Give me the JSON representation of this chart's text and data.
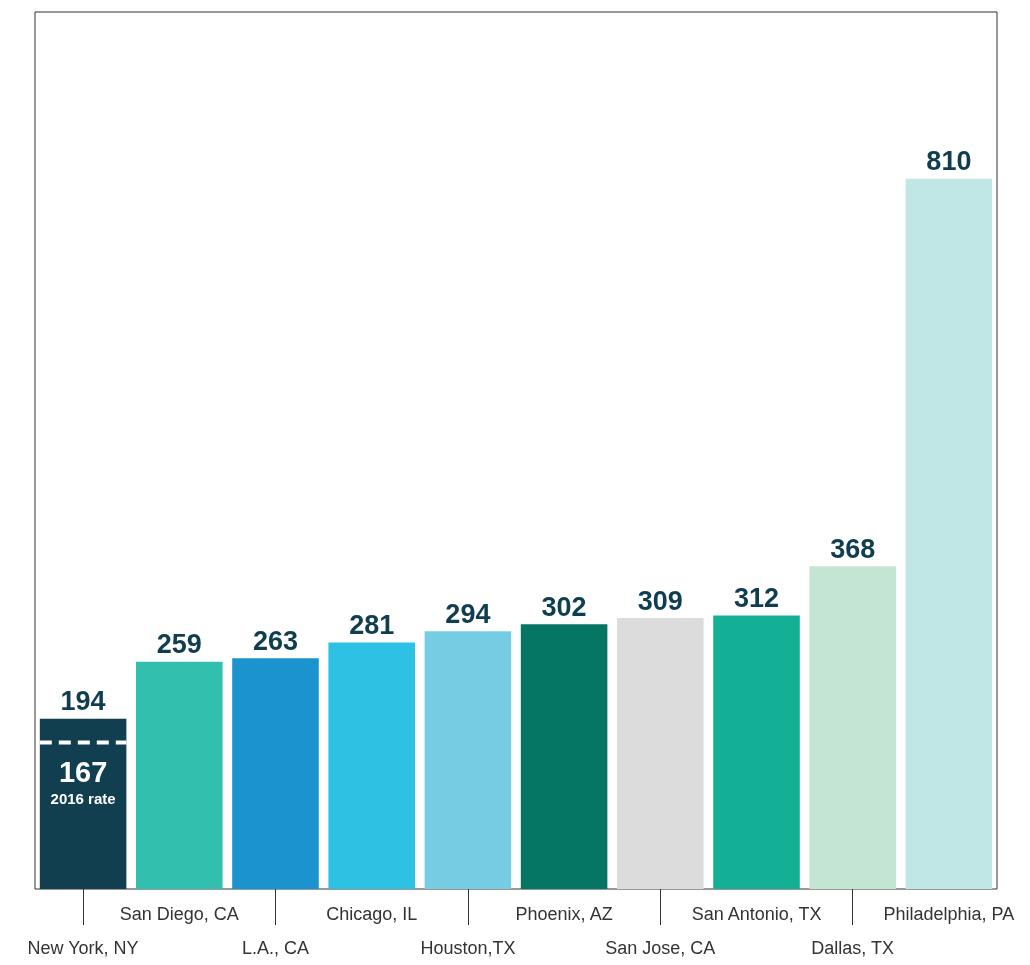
{
  "chart_data": {
    "type": "bar",
    "categories": [
      "New York, NY",
      "San Diego, CA",
      "L.A., CA",
      "Chicago, IL",
      "Houston,TX",
      "Phoenix, AZ",
      "San Jose, CA",
      "San Antonio, TX",
      "Dallas, TX",
      "Philadelphia, PA"
    ],
    "values": [
      194,
      259,
      263,
      281,
      294,
      302,
      309,
      312,
      368,
      810
    ],
    "colors": [
      "#123f50",
      "#33bfad",
      "#1a93cf",
      "#2dc1e4",
      "#76cde3",
      "#067664",
      "#dcdcdc",
      "#14b096",
      "#c4e4d4",
      "#c1e6e6"
    ],
    "data_labels": true,
    "annotations": [
      "167"
    ],
    "ref_lines": [
      {
        "axis": "y",
        "value": 167,
        "label": "2016 rate",
        "color": "#ffffff",
        "line_style": "dashed"
      }
    ]
  }
}
